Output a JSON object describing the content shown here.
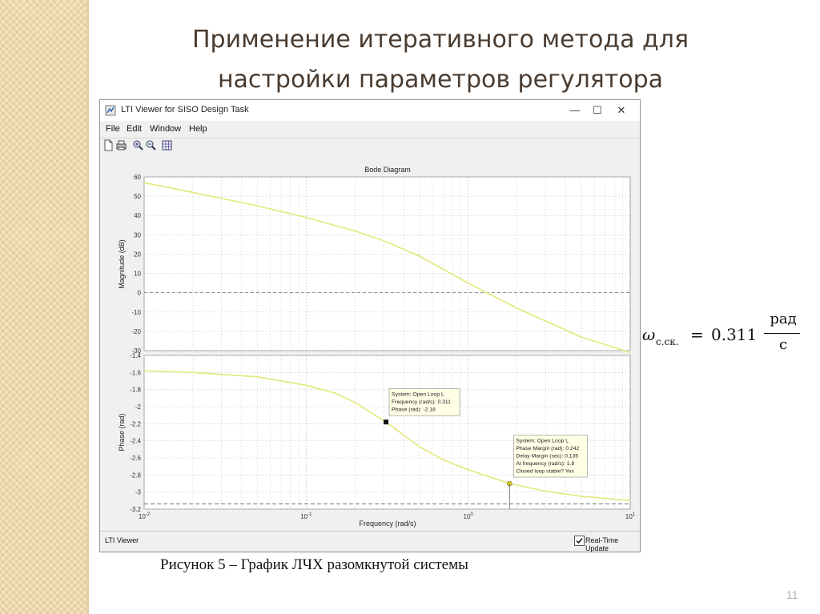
{
  "slide": {
    "title_line1": "Применение итеративного метода для",
    "title_line2": "настройки параметров регулятора",
    "caption": "Рисунок 5 – График ЛЧХ разомкнутой системы",
    "page_number": "11",
    "formula": {
      "symbol": "ω",
      "subscript": "с.ск.",
      "equals": "=",
      "value": "0.311",
      "unit_numerator": "рад",
      "unit_denominator": "с"
    }
  },
  "window": {
    "title": "LTI Viewer for SISO Design Task",
    "controls": {
      "minimize": "—",
      "maximize": "☐",
      "close": "✕"
    },
    "menu": [
      "File",
      "Edit",
      "Window",
      "Help"
    ],
    "toolbar_icons": [
      "new-icon",
      "print-icon",
      "zoom-in-icon",
      "zoom-out-icon",
      "grid-icon"
    ],
    "status": "LTI Viewer",
    "realtime_label": "Real-Time Update",
    "realtime_checked": true
  },
  "chart_data": {
    "type": "line",
    "title": "Bode Diagram",
    "xlabel": "Frequency  (rad/s)",
    "x_scale": "log",
    "xlim": [
      0.01,
      10
    ],
    "x_ticks": [
      "10^-2",
      "10^-1",
      "10^0",
      "10^1"
    ],
    "grid": true,
    "series_color": "#e4e87a",
    "magnitude": {
      "ylabel": "Magnitude (dB)",
      "ylim": [
        -30,
        60
      ],
      "yticks": [
        60,
        50,
        40,
        30,
        20,
        10,
        0,
        -10,
        -20,
        -30
      ],
      "x": [
        0.01,
        0.02,
        0.05,
        0.1,
        0.2,
        0.3,
        0.5,
        1,
        2,
        5,
        10
      ],
      "y": [
        57,
        52,
        45,
        39,
        32,
        27,
        19,
        5,
        -8,
        -23,
        -31
      ]
    },
    "phase": {
      "ylabel": "Phase (rad)",
      "ylim": [
        -3.2,
        -1.4
      ],
      "yticks": [
        -1.4,
        -1.6,
        -1.8,
        -2,
        -2.2,
        -2.4,
        -2.6,
        -2.8,
        -3,
        -3.2
      ],
      "x": [
        0.01,
        0.02,
        0.05,
        0.1,
        0.15,
        0.2,
        0.311,
        0.5,
        0.7,
        1,
        1.8,
        3,
        5,
        10
      ],
      "y": [
        -1.58,
        -1.6,
        -1.65,
        -1.75,
        -1.84,
        -1.95,
        -2.18,
        -2.47,
        -2.62,
        -2.74,
        -2.9,
        -2.99,
        -3.05,
        -3.1
      ],
      "reference_line": -3.14
    },
    "annotations": [
      {
        "x": 0.311,
        "y": -2.18,
        "marker": "square",
        "lines": [
          "System: Open Loop L",
          "Frequency (rad/s): 0.311",
          "Phase (rad): -2.18"
        ]
      },
      {
        "x": 1.8,
        "y": -2.9,
        "marker": "circle",
        "lines": [
          "System: Open Loop L",
          "Phase Margin (rad): 0.242",
          "Delay Margin (sec): 0.135",
          "At frequency (rad/s): 1.8",
          "Closed loop stable? Yes"
        ]
      }
    ]
  }
}
